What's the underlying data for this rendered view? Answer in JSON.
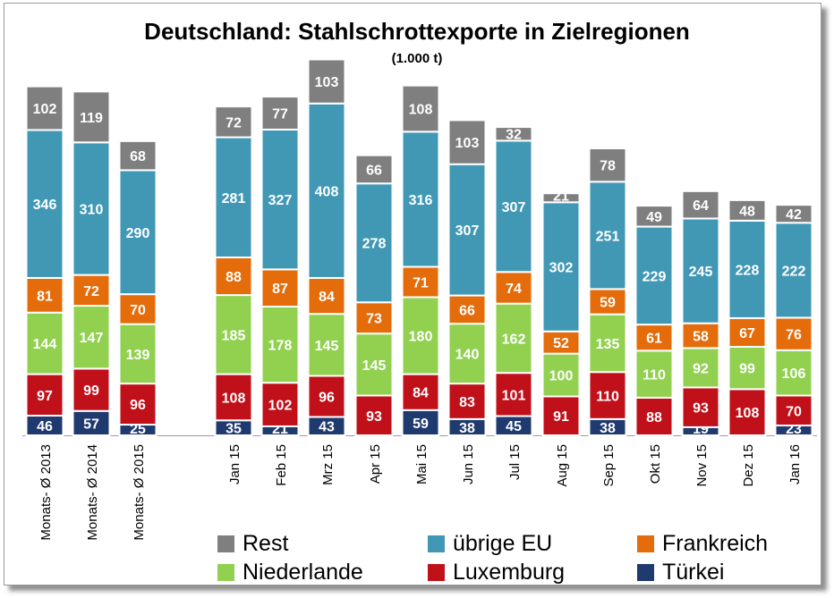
{
  "chart_data": {
    "type": "bar",
    "stacked": true,
    "title": "Deutschland: Stahlschrottexporte in Zielregionen",
    "subtitle": "(1.000 t)",
    "categories": [
      "Monats- Ø 2013",
      "Monats- Ø 2014",
      "Monats- Ø 2015",
      "Jan 15",
      "Feb 15",
      "Mrz 15",
      "Apr 15",
      "Mai 15",
      "Jun 15",
      "Jul 15",
      "Aug 15",
      "Sep 15",
      "Okt 15",
      "Nov 15",
      "Dez 15",
      "Jan 16"
    ],
    "series": [
      {
        "name": "Türkei",
        "color": "#1f3a6e",
        "values": [
          46,
          57,
          25,
          35,
          21,
          43,
          0,
          59,
          38,
          45,
          0,
          38,
          0,
          19,
          0,
          23
        ]
      },
      {
        "name": "Luxemburg",
        "color": "#c0101a",
        "values": [
          97,
          99,
          96,
          108,
          102,
          96,
          93,
          84,
          83,
          101,
          91,
          110,
          88,
          93,
          108,
          70
        ]
      },
      {
        "name": "Niederlande",
        "color": "#92d050",
        "values": [
          144,
          147,
          139,
          185,
          178,
          145,
          145,
          180,
          140,
          162,
          100,
          135,
          110,
          92,
          99,
          106
        ]
      },
      {
        "name": "Frankreich",
        "color": "#e46c0a",
        "values": [
          81,
          72,
          70,
          88,
          87,
          84,
          73,
          71,
          66,
          74,
          52,
          59,
          61,
          58,
          67,
          76
        ]
      },
      {
        "name": "übrige EU",
        "color": "#4198b5",
        "values": [
          346,
          310,
          290,
          281,
          327,
          408,
          278,
          316,
          307,
          307,
          302,
          251,
          229,
          245,
          228,
          222
        ]
      },
      {
        "name": "Rest",
        "color": "#7f7f7f",
        "values": [
          102,
          119,
          68,
          72,
          77,
          103,
          66,
          108,
          103,
          32,
          21,
          78,
          49,
          64,
          48,
          42
        ]
      }
    ],
    "legend": {
      "placement": "bottom",
      "order": [
        "Rest",
        "übrige EU",
        "Frankreich",
        "Niederlande",
        "Luxemburg",
        "Türkei"
      ]
    },
    "grid": false
  }
}
